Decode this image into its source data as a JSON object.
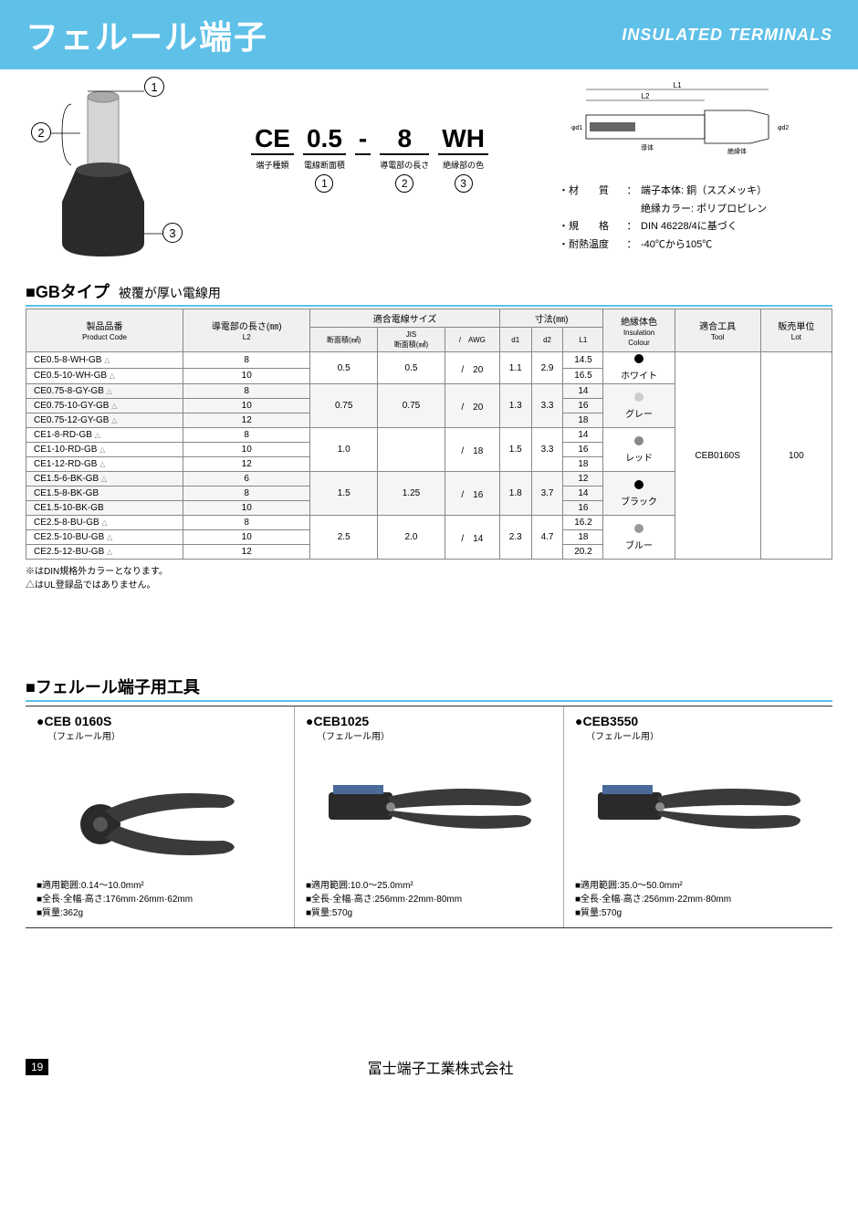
{
  "banner": {
    "jp": "フェルール端子",
    "en": "INSULATED TERMINALS"
  },
  "code_guide": {
    "parts": [
      {
        "big": "CE",
        "label": "端子種類",
        "num": ""
      },
      {
        "big": "0.5",
        "label": "電線断面積",
        "num": "①"
      },
      {
        "big": "-",
        "label": "",
        "num": ""
      },
      {
        "big": "8",
        "label": "導電部の長さ",
        "num": "②"
      },
      {
        "big": "WH",
        "label": "絶縁部の色",
        "num": "③"
      }
    ]
  },
  "specs": [
    {
      "label": "・材　　質",
      "val": "端子本体: 銅（スズメッキ）"
    },
    {
      "label": "",
      "val": "絶縁カラー: ポリプロピレン"
    },
    {
      "label": "・規　　格",
      "val": "DIN 46228/4に基づく"
    },
    {
      "label": "・耐熱温度",
      "val": "-40℃から105℃"
    }
  ],
  "section_gb": {
    "mark": "■GBタイプ",
    "sub": "被覆が厚い電線用"
  },
  "headers": {
    "code": "製品品番",
    "code_sub": "Product Code",
    "l2": "導電部の長さ(㎜)",
    "l2_sub": "L2",
    "wire": "適合電線サイズ",
    "area": "断面積(㎟)",
    "jis": "JIS\n断面積(㎟)",
    "awg": "/　AWG",
    "dim": "寸法(㎜)",
    "d1": "d1",
    "d2": "d2",
    "l1": "L1",
    "color": "絶縁体色",
    "color_sub": "Insulation\nColour",
    "tool": "適合工具",
    "tool_sub": "Tool",
    "lot": "販売単位",
    "lot_sub": "Lot"
  },
  "groups": [
    {
      "rows": [
        {
          "code": "CE0.5-8-WH-GB",
          "tri": true,
          "l2": "8",
          "l1": "14.5"
        },
        {
          "code": "CE0.5-10-WH-GB",
          "tri": true,
          "l2": "10",
          "l1": "16.5"
        }
      ],
      "area": "0.5",
      "jis": "0.5",
      "awg": "20",
      "d1": "1.1",
      "d2": "2.9",
      "color": "ホワイト",
      "dot": "#000000"
    },
    {
      "rows": [
        {
          "code": "CE0.75-8-GY-GB",
          "tri": true,
          "l2": "8",
          "l1": "14"
        },
        {
          "code": "CE0.75-10-GY-GB",
          "tri": true,
          "l2": "10",
          "l1": "16"
        },
        {
          "code": "CE0.75-12-GY-GB",
          "tri": true,
          "l2": "12",
          "l1": "18"
        }
      ],
      "area": "0.75",
      "jis": "0.75",
      "awg": "20",
      "d1": "1.3",
      "d2": "3.3",
      "color": "グレー",
      "dot": "#cccccc",
      "shade": true
    },
    {
      "rows": [
        {
          "code": "CE1-8-RD-GB",
          "tri": true,
          "l2": "8",
          "l1": "14"
        },
        {
          "code": "CE1-10-RD-GB",
          "tri": true,
          "l2": "10",
          "l1": "16"
        },
        {
          "code": "CE1-12-RD-GB",
          "tri": true,
          "l2": "12",
          "l1": "18"
        }
      ],
      "area": "1.0",
      "jis": "",
      "awg": "18",
      "d1": "1.5",
      "d2": "3.3",
      "color": "レッド",
      "dot": "#888888"
    },
    {
      "rows": [
        {
          "code": "CE1.5-6-BK-GB",
          "tri": true,
          "l2": "6",
          "l1": "12"
        },
        {
          "code": "CE1.5-8-BK-GB",
          "tri": false,
          "l2": "8",
          "l1": "14"
        },
        {
          "code": "CE1.5-10-BK-GB",
          "tri": false,
          "l2": "10",
          "l1": "16"
        }
      ],
      "area": "1.5",
      "jis": "1.25",
      "awg": "16",
      "d1": "1.8",
      "d2": "3.7",
      "color": "ブラック",
      "dot": "#000000",
      "shade": true
    },
    {
      "rows": [
        {
          "code": "CE2.5-8-BU-GB",
          "tri": true,
          "l2": "8",
          "l1": "16.2"
        },
        {
          "code": "CE2.5-10-BU-GB",
          "tri": true,
          "l2": "10",
          "l1": "18"
        },
        {
          "code": "CE2.5-12-BU-GB",
          "tri": true,
          "l2": "12",
          "l1": "20.2"
        }
      ],
      "area": "2.5",
      "jis": "2.0",
      "awg": "14",
      "d1": "2.3",
      "d2": "4.7",
      "color": "ブルー",
      "dot": "#999999"
    }
  ],
  "common": {
    "tool": "CEB0160S",
    "lot": "100"
  },
  "notes": [
    "※はDIN規格外カラーとなります。",
    "△はUL登録品ではありません。"
  ],
  "section_tools": {
    "mark": "■フェルール端子用工具"
  },
  "tools": [
    {
      "name": "CEB 0160S",
      "sub": "（フェルール用）",
      "specs": [
        "適用範囲:0.14～10.0mm²",
        "全長·全幅·高さ:176mm·26mm·62mm",
        "質量:362g"
      ],
      "handle_color": "#3a3a3a"
    },
    {
      "name": "CEB1025",
      "sub": "（フェルール用）",
      "specs": [
        "適用範囲:10.0～25.0mm²",
        "全長·全幅·高さ:256mm·22mm·80mm",
        "質量:570g"
      ],
      "handle_color": "#3a3a3a"
    },
    {
      "name": "CEB3550",
      "sub": "（フェルール用）",
      "specs": [
        "適用範囲:35.0～50.0mm²",
        "全長·全幅·高さ:256mm·22mm·80mm",
        "質量:570g"
      ],
      "handle_color": "#3a3a3a"
    }
  ],
  "footer": {
    "page": "19",
    "company": "冨士端子工業株式会社"
  }
}
